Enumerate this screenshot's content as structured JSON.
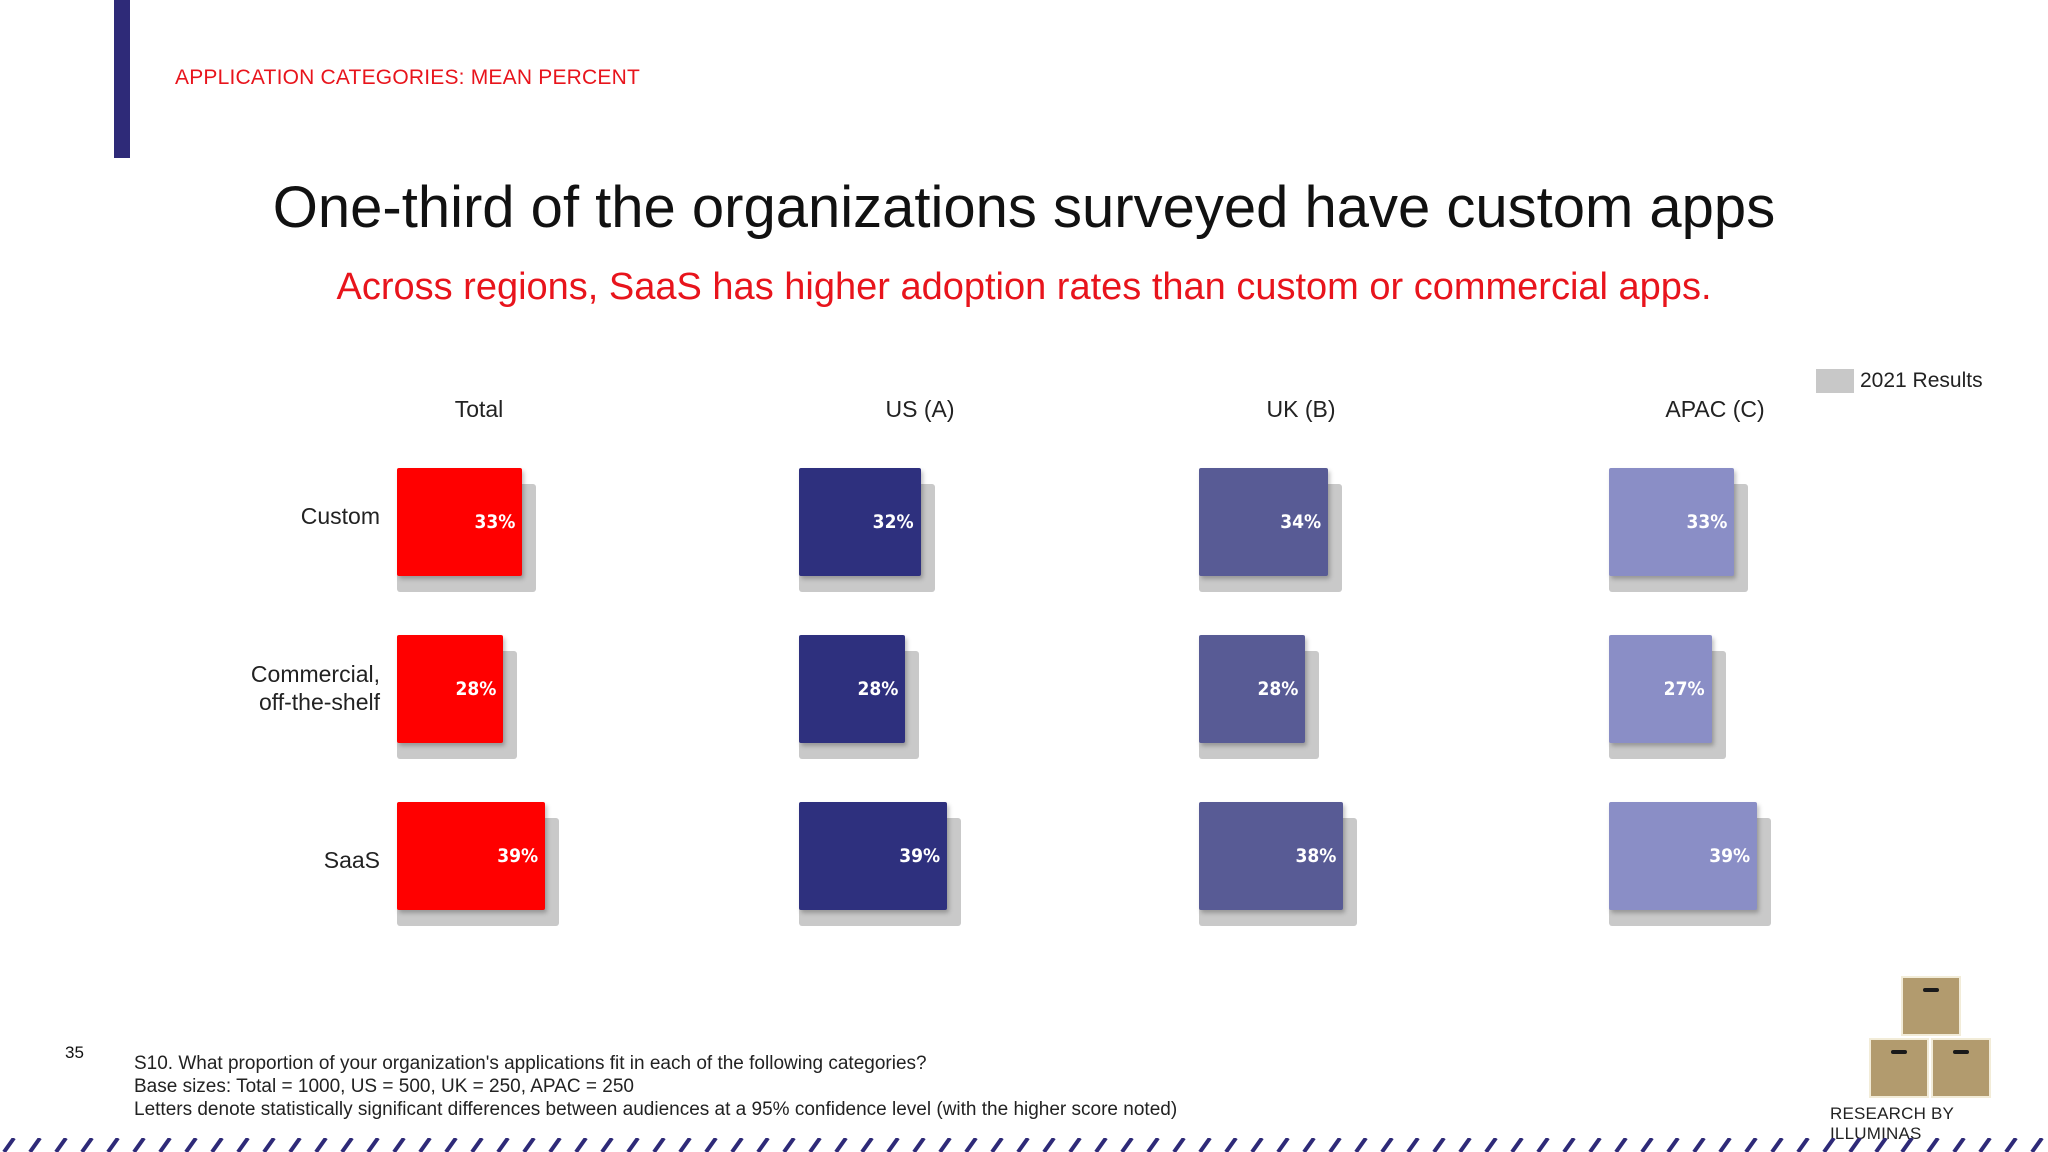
{
  "header": {
    "section_label": "APPLICATION CATEGORIES: MEAN PERCENT",
    "title": "One-third of the organizations surveyed have custom apps",
    "subtitle": "Across regions, SaaS has higher adoption rates than custom or commercial apps."
  },
  "legend": {
    "label": "2021 Results",
    "color": "#c8c8c8"
  },
  "chart_data": {
    "type": "bar",
    "orientation": "horizontal",
    "title": "One-third of the organizations surveyed have custom apps",
    "subtitle": "Across regions, SaaS has higher adoption rates than custom or commercial apps.",
    "categories": [
      "Custom",
      "Commercial,\noff-the-shelf",
      "SaaS"
    ],
    "panels": [
      {
        "name": "Total",
        "color": "#ff0000",
        "values": [
          33,
          28,
          39
        ],
        "labels": [
          "33%",
          "28%",
          "39%"
        ]
      },
      {
        "name": "US (A)",
        "color": "#2e307e",
        "values": [
          32,
          28,
          39
        ],
        "labels": [
          "32%",
          "28%",
          "39%"
        ]
      },
      {
        "name": "UK (B)",
        "color": "#585b95",
        "values": [
          34,
          28,
          38
        ],
        "labels": [
          "34%",
          "28%",
          "38%"
        ]
      },
      {
        "name": "APAC (C)",
        "color": "#8a8ec6",
        "values": [
          33,
          27,
          39
        ],
        "labels": [
          "33%",
          "27%",
          "39%"
        ]
      }
    ],
    "comparison_series": {
      "name": "2021 Results",
      "color": "#c8c8c8"
    },
    "legend_position": "top-right",
    "grid": false
  },
  "footer": {
    "page_number": "35",
    "notes": [
      "S10. What proportion of your organization's applications fit in each of the following categories?",
      "Base sizes: Total = 1000, US = 500, UK = 250, APAC = 250",
      "Letters denote statistically significant differences between audiences at a 95% confidence level (with the higher score noted)"
    ],
    "logo_text": "RESEARCH BY ILLUMINAS"
  }
}
